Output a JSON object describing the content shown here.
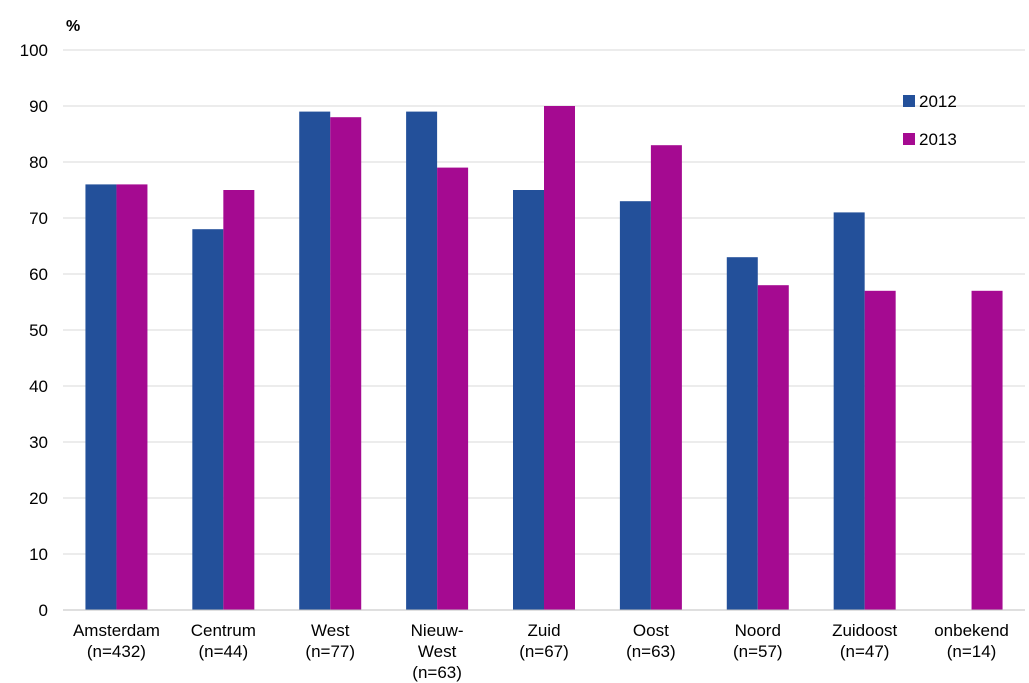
{
  "chart_data": {
    "type": "bar",
    "unit_label": "%",
    "title": "",
    "xlabel": "",
    "ylabel": "%",
    "ylim": [
      0,
      100
    ],
    "y_ticks": [
      0,
      10,
      20,
      30,
      40,
      50,
      60,
      70,
      80,
      90,
      100
    ],
    "grid": true,
    "legend_position": "top-right",
    "categories": [
      [
        "Amsterdam",
        "(n=432)"
      ],
      [
        "Centrum",
        "(n=44)"
      ],
      [
        "West",
        "(n=77)"
      ],
      [
        "Nieuw-",
        "West",
        "(n=63)"
      ],
      [
        "Zuid",
        "(n=67)"
      ],
      [
        "Oost",
        "(n=63)"
      ],
      [
        "Noord",
        "(n=57)"
      ],
      [
        "Zuidoost",
        "(n=47)"
      ],
      [
        "onbekend",
        "(n=14)"
      ]
    ],
    "series": [
      {
        "name": "2012",
        "color": "#23509A",
        "values": [
          76,
          68,
          89,
          89,
          75,
          73,
          63,
          71,
          null
        ]
      },
      {
        "name": "2013",
        "color": "#A50A91",
        "values": [
          76,
          75,
          88,
          79,
          90,
          83,
          58,
          57,
          57
        ]
      }
    ]
  }
}
